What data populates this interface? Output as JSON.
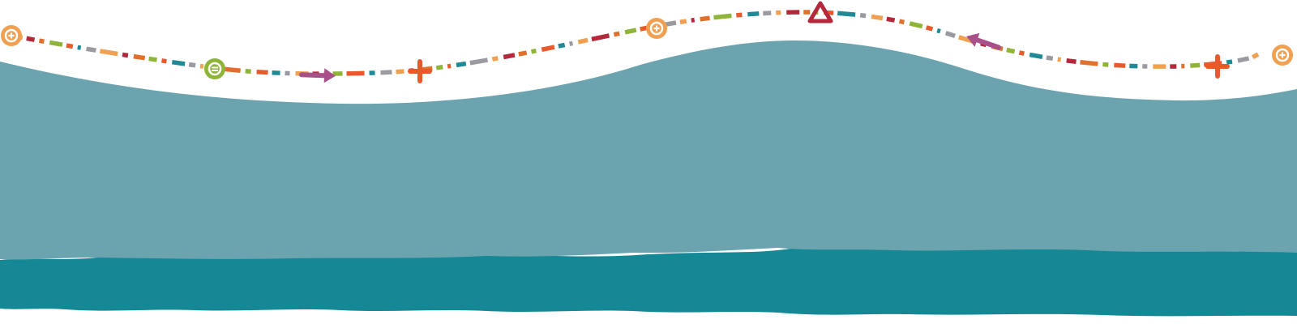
{
  "colors": {
    "background": "#ffffff",
    "upper_band": "#6ba3ae",
    "lower_band": "#148895",
    "dash_palette": [
      "#1f8a96",
      "#b3283a",
      "#e85a2c",
      "#f0a050",
      "#8fb43a",
      "#9a9aa0",
      "#e0702e"
    ],
    "arrow": "#a8508a",
    "circle": "#f0a050",
    "circle_green": "#8fb43a",
    "plus": "#e85a2c",
    "triangle": "#b3283a"
  },
  "icons": [
    "plus-circle-icon",
    "minus-circle-icon",
    "arrow-right-icon",
    "plus-icon",
    "plus-circle-icon",
    "triangle-icon",
    "arrow-left-icon",
    "plus-icon",
    "plus-circle-icon"
  ]
}
